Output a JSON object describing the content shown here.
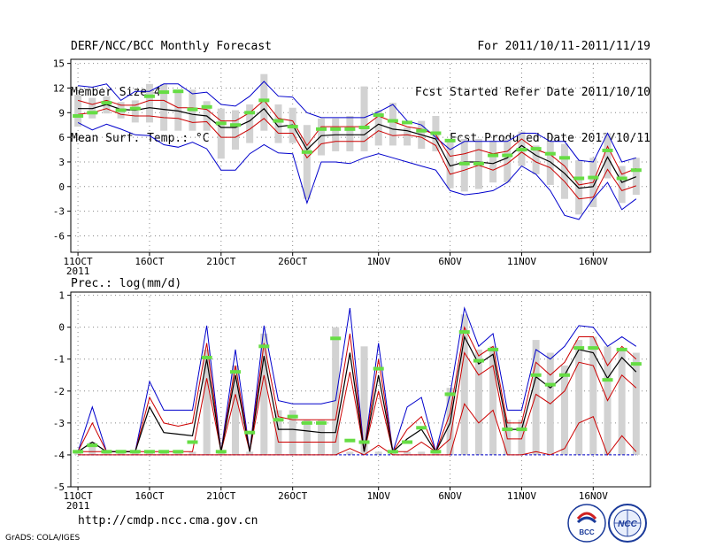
{
  "header": {
    "title": "DERF/NCC/BCC Monthly Forecast",
    "member_size": "Member Size=40",
    "variable": "Mean Surf. Temp.: °C",
    "period": "For 2011/10/11-2011/11/19",
    "refer_date": "Fcst Started Refer Date 2011/10/10",
    "produced_date": "Fcst Produced Date 2011/10/11"
  },
  "footer": {
    "url": "http://cmdp.ncc.cma.gov.cn",
    "grads": "GrADS: COLA/IGES",
    "logo_left_text": "BCC",
    "logo_right_text": "NCC"
  },
  "colors": {
    "ensemble_max_min": "#0000cc",
    "ensemble_mean": "#000000",
    "ensemble_spread": "#cc0000",
    "observation": "#66dd44",
    "box": "#d2d2d2",
    "grid": "#888888"
  },
  "chart_data": [
    {
      "type": "line",
      "panel": "temperature",
      "title": "Mean Surf. Temp.: °C",
      "xlabel": "",
      "ylabel": "",
      "ylim": [
        -8,
        15.5
      ],
      "yticks": [
        15,
        12,
        9,
        6,
        3,
        0,
        -3,
        -6
      ],
      "xlim": [
        0.5,
        41
      ],
      "xticks": [
        {
          "day": 1,
          "label": "11OCT",
          "sub": "2011"
        },
        {
          "day": 6,
          "label": "16OCT"
        },
        {
          "day": 11,
          "label": "21OCT"
        },
        {
          "day": 16,
          "label": "26OCT"
        },
        {
          "day": 22,
          "label": "1NOV"
        },
        {
          "day": 27,
          "label": "6NOV"
        },
        {
          "day": 32,
          "label": "11NOV"
        },
        {
          "day": 37,
          "label": "16NOV"
        }
      ],
      "x": [
        1,
        2,
        3,
        4,
        5,
        6,
        7,
        8,
        9,
        10,
        11,
        12,
        13,
        14,
        15,
        16,
        17,
        18,
        19,
        20,
        21,
        22,
        23,
        24,
        25,
        26,
        27,
        28,
        29,
        30,
        31,
        32,
        33,
        34,
        35,
        36,
        37,
        38,
        39,
        40
      ],
      "series": [
        {
          "name": "max",
          "values": [
            12.3,
            12.1,
            12.5,
            10.5,
            11.6,
            11.6,
            12.5,
            12.5,
            11.3,
            11.5,
            10.0,
            9.8,
            11.0,
            12.8,
            11.0,
            10.9,
            9.0,
            8.4,
            8.4,
            8.4,
            8.4,
            9.1,
            10.0,
            8.0,
            7.5,
            6.0,
            4.5,
            5.5,
            5.5,
            5.5,
            5.5,
            6.5,
            6.5,
            5.5,
            5.5,
            3.2,
            3.0,
            6.5,
            3.0,
            3.5
          ]
        },
        {
          "name": "upper",
          "values": [
            10.5,
            10.0,
            10.5,
            9.9,
            9.9,
            10.5,
            10.5,
            9.6,
            9.6,
            9.4,
            8.0,
            8.0,
            9.0,
            10.5,
            8.3,
            8.0,
            5.0,
            7.3,
            7.3,
            7.3,
            7.3,
            8.6,
            7.9,
            7.3,
            7.0,
            6.3,
            3.7,
            4.0,
            4.5,
            4.0,
            4.3,
            5.8,
            4.5,
            3.9,
            2.5,
            0.2,
            0.5,
            4.9,
            1.5,
            2.2
          ]
        },
        {
          "name": "mean",
          "values": [
            9.5,
            9.5,
            10.0,
            9.4,
            9.3,
            9.6,
            9.4,
            9.2,
            8.8,
            8.6,
            7.2,
            7.2,
            8.0,
            9.5,
            7.3,
            7.5,
            4.5,
            6.2,
            6.3,
            6.3,
            6.3,
            7.6,
            7.0,
            6.8,
            6.3,
            5.8,
            2.5,
            3.0,
            3.0,
            2.8,
            3.5,
            5.0,
            3.8,
            3.0,
            1.6,
            -0.2,
            0.0,
            3.6,
            0.5,
            1.2
          ]
        },
        {
          "name": "lower",
          "values": [
            8.8,
            9.0,
            9.5,
            8.8,
            8.6,
            8.6,
            8.4,
            8.3,
            7.8,
            7.9,
            6.0,
            6.0,
            7.0,
            8.3,
            6.5,
            6.5,
            3.5,
            5.2,
            5.5,
            5.5,
            5.5,
            6.8,
            6.2,
            6.3,
            6.0,
            5.0,
            1.5,
            2.0,
            2.6,
            2.0,
            2.8,
            4.2,
            3.0,
            2.3,
            0.6,
            -1.5,
            -1.3,
            2.1,
            -0.5,
            0.1
          ]
        },
        {
          "name": "min",
          "values": [
            7.8,
            6.9,
            7.6,
            7.0,
            6.3,
            6.2,
            5.1,
            4.8,
            5.4,
            4.6,
            2.0,
            2.0,
            4.0,
            5.1,
            4.1,
            4.0,
            -2.0,
            3.0,
            3.0,
            2.8,
            3.5,
            4.0,
            3.5,
            3.0,
            2.5,
            2.0,
            -0.5,
            -1.0,
            -0.8,
            -0.5,
            0.5,
            2.5,
            1.5,
            -0.5,
            -3.5,
            -4.0,
            -1.5,
            0.5,
            -2.8,
            -1.5
          ]
        },
        {
          "name": "observation",
          "values": [
            8.6,
            9.0,
            10.2,
            9.3,
            9.5,
            11.0,
            11.5,
            11.6,
            9.4,
            9.7,
            7.7,
            7.5,
            9.0,
            10.5,
            8.0,
            7.3,
            4.2,
            7.0,
            7.0,
            7.0,
            7.2,
            8.7,
            8.0,
            7.8,
            6.8,
            6.5,
            5.6,
            2.8,
            2.8,
            3.8,
            3.8,
            4.5,
            4.6,
            4.0,
            3.5,
            1.0,
            1.1,
            4.4,
            1.0,
            2.0
          ]
        },
        {
          "name": "box_high",
          "values": [
            11.2,
            10.8,
            11.0,
            10.3,
            10.5,
            12.5,
            12.5,
            11.8,
            11.8,
            10.4,
            9.5,
            9.3,
            10.0,
            13.7,
            10.0,
            9.6,
            7.5,
            8.3,
            8.3,
            8.6,
            12.2,
            9.3,
            10.2,
            7.2,
            8.0,
            8.6,
            5.8,
            5.8,
            5.8,
            5.6,
            5.8,
            6.7,
            5.0,
            5.5,
            5.2,
            3.2,
            3.5,
            6.5,
            2.5,
            3.5
          ]
        },
        {
          "name": "box_low",
          "values": [
            7.3,
            8.3,
            8.9,
            8.3,
            7.8,
            7.8,
            6.8,
            6.8,
            6.8,
            6.8,
            3.4,
            4.5,
            5.3,
            6.8,
            5.3,
            5.3,
            -1.5,
            3.8,
            4.3,
            4.3,
            4.3,
            5.0,
            5.0,
            5.0,
            4.6,
            4.3,
            -0.2,
            -0.6,
            -0.3,
            0.5,
            0.5,
            2.5,
            1.5,
            0.2,
            -1.5,
            -3.4,
            -2.5,
            1.0,
            -2.0,
            -1.0
          ]
        }
      ]
    },
    {
      "type": "line",
      "panel": "precipitation",
      "title": "Prec.: log(mm/d)",
      "xlabel": "",
      "ylabel": "",
      "ylim": [
        -5,
        1.1
      ],
      "yticks": [
        1,
        0,
        -1,
        -2,
        -3,
        -4,
        -5
      ],
      "xlim": [
        0.5,
        41
      ],
      "xticks": [
        {
          "day": 1,
          "label": "11OCT",
          "sub": "2011"
        },
        {
          "day": 6,
          "label": "16OCT"
        },
        {
          "day": 11,
          "label": "21OCT"
        },
        {
          "day": 16,
          "label": "26OCT"
        },
        {
          "day": 22,
          "label": "1NOV"
        },
        {
          "day": 27,
          "label": "6NOV"
        },
        {
          "day": 32,
          "label": "11NOV"
        },
        {
          "day": 37,
          "label": "16NOV"
        }
      ],
      "x": [
        1,
        2,
        3,
        4,
        5,
        6,
        7,
        8,
        9,
        10,
        11,
        12,
        13,
        14,
        15,
        16,
        17,
        18,
        19,
        20,
        21,
        22,
        23,
        24,
        25,
        26,
        27,
        28,
        29,
        30,
        31,
        32,
        33,
        34,
        35,
        36,
        37,
        38,
        39,
        40
      ],
      "series": [
        {
          "name": "max",
          "values": [
            -3.9,
            -2.5,
            -3.9,
            -3.9,
            -3.9,
            -1.7,
            -2.6,
            -2.6,
            -2.6,
            0.05,
            -3.9,
            -0.7,
            -3.9,
            0.05,
            -2.3,
            -2.4,
            -2.4,
            -2.4,
            -2.3,
            0.6,
            -3.9,
            -0.5,
            -3.9,
            -2.5,
            -2.2,
            -3.9,
            -2.1,
            0.6,
            -0.6,
            -0.2,
            -2.6,
            -2.6,
            -0.7,
            -1.0,
            -0.6,
            0.05,
            0.0,
            -0.6,
            -0.3,
            -0.6
          ]
        },
        {
          "name": "upper",
          "values": [
            -3.9,
            -3.0,
            -3.9,
            -3.9,
            -3.9,
            -2.2,
            -3.0,
            -3.1,
            -3.0,
            -0.5,
            -3.9,
            -1.2,
            -3.9,
            -0.5,
            -2.8,
            -2.9,
            -2.9,
            -2.9,
            -2.9,
            -0.2,
            -3.9,
            -1.0,
            -3.9,
            -3.2,
            -2.8,
            -3.9,
            -2.7,
            0.0,
            -0.9,
            -0.6,
            -3.0,
            -3.0,
            -1.1,
            -1.5,
            -1.1,
            -0.3,
            -0.3,
            -1.2,
            -0.6,
            -1.0
          ]
        },
        {
          "name": "mean",
          "values": [
            -3.9,
            -3.6,
            -3.9,
            -3.9,
            -3.9,
            -2.5,
            -3.3,
            -3.35,
            -3.4,
            -1.0,
            -3.9,
            -1.5,
            -3.9,
            -0.9,
            -3.2,
            -3.2,
            -3.25,
            -3.3,
            -3.3,
            -0.8,
            -3.9,
            -1.5,
            -3.9,
            -3.5,
            -3.2,
            -3.9,
            -3.0,
            -0.3,
            -1.15,
            -0.85,
            -3.2,
            -3.2,
            -1.55,
            -1.9,
            -1.5,
            -0.7,
            -0.8,
            -1.6,
            -0.95,
            -1.4
          ]
        },
        {
          "name": "lower",
          "values": [
            -3.9,
            -3.9,
            -3.9,
            -3.9,
            -3.9,
            -3.9,
            -3.9,
            -3.9,
            -3.9,
            -1.6,
            -3.9,
            -2.1,
            -3.9,
            -1.5,
            -3.6,
            -3.6,
            -3.6,
            -3.6,
            -3.6,
            -1.4,
            -3.9,
            -2.0,
            -3.9,
            -3.9,
            -3.6,
            -3.9,
            -3.5,
            -0.8,
            -1.5,
            -1.2,
            -3.5,
            -3.5,
            -2.1,
            -2.4,
            -2.0,
            -1.1,
            -1.2,
            -2.3,
            -1.5,
            -1.9
          ]
        },
        {
          "name": "min",
          "values": [
            -4.0,
            -4.0,
            -4.0,
            -4.0,
            -4.0,
            -4.0,
            -4.0,
            -4.0,
            -4.0,
            -4.0,
            -4.0,
            -4.0,
            -4.0,
            -4.0,
            -4.0,
            -4.0,
            -4.0,
            -4.0,
            -4.0,
            -4.0,
            -4.0,
            -4.0,
            -4.0,
            -4.0,
            -4.0,
            -4.0,
            -4.0,
            -4.0,
            -4.0,
            -4.0,
            -4.0,
            -4.0,
            -4.0,
            -4.0,
            -4.0,
            -4.0,
            -4.0,
            -4.0,
            -4.0,
            -4.0
          ]
        },
        {
          "name": "red_low",
          "values": [
            -4.0,
            -4.0,
            -4.0,
            -4.0,
            -4.0,
            -4.0,
            -4.0,
            -4.0,
            -4.0,
            -4.0,
            -4.0,
            -4.0,
            -4.0,
            -4.0,
            -4.0,
            -4.0,
            -4.0,
            -4.0,
            -4.0,
            -3.8,
            -4.0,
            -3.7,
            -4.0,
            -4.0,
            -4.0,
            -4.0,
            -4.0,
            -2.4,
            -3.0,
            -2.6,
            -4.0,
            -4.0,
            -3.9,
            -4.0,
            -3.8,
            -3.0,
            -2.8,
            -4.0,
            -3.4,
            -3.9
          ]
        },
        {
          "name": "observation",
          "values": [
            -3.9,
            -3.7,
            -3.9,
            -3.9,
            -3.9,
            -3.9,
            -3.9,
            -3.9,
            -3.6,
            -0.95,
            -3.9,
            -1.4,
            -3.3,
            -0.6,
            -2.9,
            -2.8,
            -3.0,
            -3.0,
            -0.35,
            -3.55,
            -3.6,
            -1.3,
            -3.9,
            -3.6,
            -3.15,
            -3.9,
            -2.1,
            -0.15,
            -1.05,
            -0.7,
            -3.2,
            -3.2,
            -1.5,
            -1.8,
            -1.5,
            -0.65,
            -0.65,
            -1.65,
            -0.7,
            -1.15
          ]
        },
        {
          "name": "box_high",
          "values": [
            -3.9,
            -3.6,
            -3.9,
            -3.9,
            -3.9,
            -3.9,
            -3.9,
            -3.9,
            -3.9,
            -0.7,
            -3.9,
            -1.2,
            -3.9,
            -0.2,
            -2.6,
            -2.6,
            -2.9,
            -2.9,
            0.0,
            -3.9,
            -0.6,
            -3.9,
            -3.9,
            -3.9,
            -3.9,
            -3.9,
            -1.9,
            0.4,
            -0.7,
            -0.6,
            -2.9,
            -2.9,
            -0.4,
            -0.8,
            -1.2,
            -0.4,
            -0.3,
            -0.6,
            -0.7,
            -0.8
          ]
        },
        {
          "name": "box_low",
          "values": [
            -4.0,
            -4.0,
            -4.0,
            -4.0,
            -4.0,
            -4.0,
            -4.0,
            -4.0,
            -4.0,
            -4.0,
            -4.0,
            -4.0,
            -4.0,
            -4.0,
            -4.0,
            -4.0,
            -4.0,
            -4.0,
            -4.0,
            -4.0,
            -4.0,
            -4.0,
            -4.0,
            -4.0,
            -4.0,
            -4.0,
            -4.0,
            -4.0,
            -4.0,
            -4.0,
            -4.0,
            -4.0,
            -4.0,
            -4.0,
            -4.0,
            -4.0,
            -4.0,
            -4.0,
            -4.0,
            -4.0
          ]
        }
      ]
    }
  ]
}
